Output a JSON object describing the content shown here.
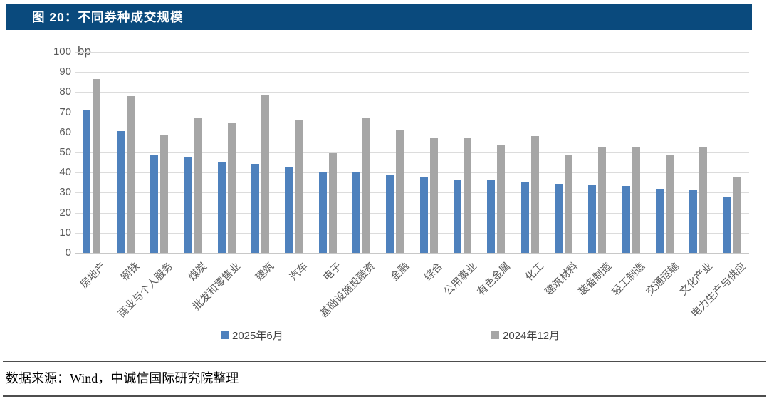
{
  "header": {
    "title": "图 20：不同券种成交规模",
    "bg_color": "#0A4A7D",
    "text_color": "#FFFFFF"
  },
  "chart_data": {
    "type": "bar",
    "title": "不同券种成交规模",
    "unit_label": "bp",
    "ylim": [
      0,
      100
    ],
    "ytick_step": 10,
    "grid": true,
    "legend_position": "bottom",
    "grid_color": "#DCDCDC",
    "axis_text_color": "#595959",
    "categories": [
      "房地产",
      "钢铁",
      "商业与个人服务",
      "煤炭",
      "批发和零售业",
      "建筑",
      "汽车",
      "电子",
      "基础设施投融资",
      "金融",
      "综合",
      "公用事业",
      "有色金属",
      "化工",
      "建筑材料",
      "装备制造",
      "轻工制造",
      "交通运输",
      "文化产业",
      "电力生产与供应"
    ],
    "series": [
      {
        "name": "2025年6月",
        "color": "#4E81BD",
        "values": [
          71,
          60.5,
          48.5,
          48,
          45,
          44.5,
          42.5,
          40,
          40,
          38.5,
          38,
          36,
          36,
          35,
          34.5,
          34,
          33.5,
          32,
          31.5,
          28
        ]
      },
      {
        "name": "2024年12月",
        "color": "#A6A6A6",
        "values": [
          86.5,
          78,
          58.5,
          67.5,
          64.5,
          78.5,
          66,
          49.5,
          67.5,
          61,
          57,
          57.5,
          53.5,
          58,
          49,
          53,
          53,
          48.5,
          52.5,
          38
        ]
      }
    ]
  },
  "footer": {
    "source_text": "数据来源：Wind，中诚信国际研究院整理"
  }
}
